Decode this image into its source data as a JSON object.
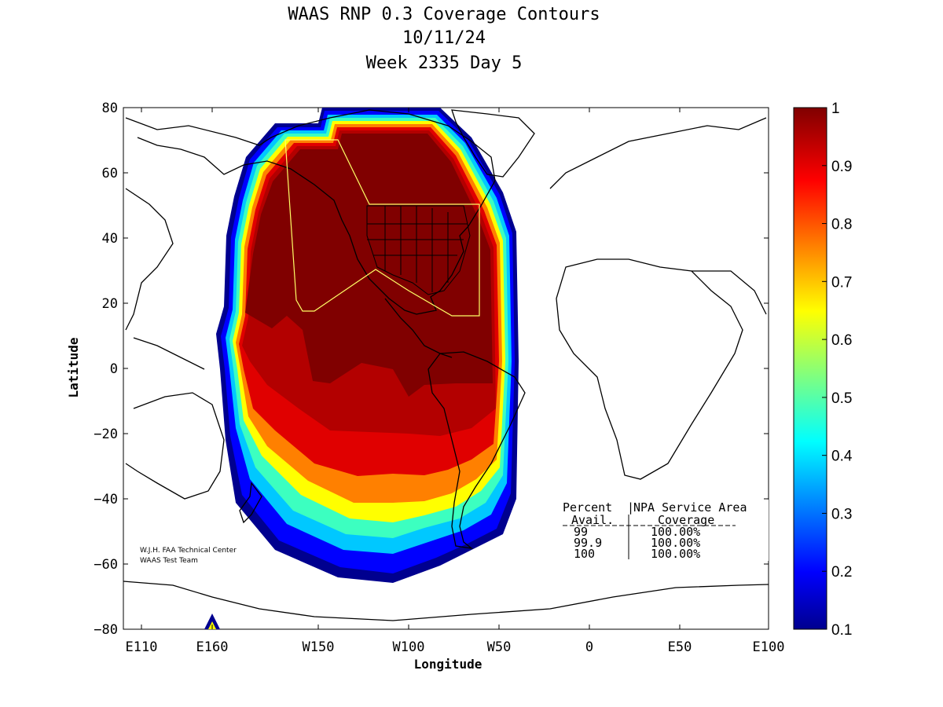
{
  "title": {
    "line1": "WAAS RNP 0.3 Coverage Contours",
    "line2": "10/11/24",
    "line3": "Week 2335 Day 5"
  },
  "axes": {
    "xlabel": "Longitude",
    "ylabel": "Latitude",
    "x_ticks": [
      "E110",
      "E160",
      "W150",
      "W100",
      "W50",
      "0",
      "E50",
      "E100"
    ],
    "y_ticks": [
      "80",
      "60",
      "40",
      "20",
      "0",
      "−20",
      "−40",
      "−60",
      "−80"
    ]
  },
  "colorbar": {
    "ticks": [
      "1",
      "0.9",
      "0.8",
      "0.7",
      "0.6",
      "0.5",
      "0.4",
      "0.3",
      "0.2",
      "0.1"
    ],
    "range": [
      0.1,
      1
    ],
    "colormap": "jet"
  },
  "credit": {
    "line1": "W.J.H. FAA Technical Center",
    "line2": "WAAS Test Team"
  },
  "stats_table": {
    "header_col1_line1": "Percent",
    "header_col2_line1": "NPA Service Area",
    "header_col1_line2": "Avail.",
    "header_col2_line2": "Coverage",
    "rows": [
      {
        "avail": "99",
        "coverage": "100.00%"
      },
      {
        "avail": "99.9",
        "coverage": "100.00%"
      },
      {
        "avail": "100",
        "coverage": "100.00%"
      }
    ]
  },
  "colors": {
    "max": "#800000",
    "high": "#b30000",
    "mid": "#ffff00",
    "low": "#0000cc",
    "service_area": "#ffff66"
  }
}
